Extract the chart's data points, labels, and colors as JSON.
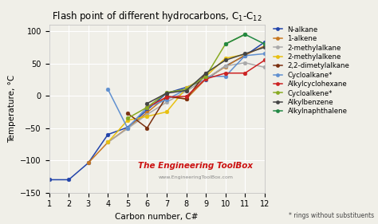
{
  "title": "Flash point of different hydrocarbons, C$_1$-C$_{12}$",
  "xlabel": "Carbon number, C#",
  "ylabel": "Temperature, °C",
  "ylim": [
    -150,
    110
  ],
  "xlim": [
    1,
    12
  ],
  "background_color": "#f0efe8",
  "plot_bg": "#f0efe8",
  "watermark": "The Engineering ToolBox",
  "watermark_url": "www.EngineeringToolBox.com",
  "watermark_color": "#cc1111",
  "series": [
    {
      "label": "N-alkane",
      "color": "#2244aa",
      "x": [
        1,
        2,
        3,
        4,
        5,
        6,
        7,
        8,
        9,
        10,
        11,
        12
      ],
      "y": [
        -130,
        -130,
        -104,
        -60,
        -49,
        -22,
        4,
        13,
        25,
        46,
        62,
        83
      ]
    },
    {
      "label": "1-alkene",
      "color": "#c87820",
      "x": [
        3,
        4,
        5,
        6,
        7,
        8,
        9,
        10,
        11,
        12
      ],
      "y": [
        -104,
        -72,
        -50,
        -26,
        -1,
        -5,
        26,
        45,
        63,
        77
      ]
    },
    {
      "label": "2-methylalkane",
      "color": "#aaaaaa",
      "x": [
        4,
        5,
        6,
        7,
        8,
        9,
        10,
        11,
        12
      ],
      "y": [
        -72,
        -51,
        -29,
        -10,
        7,
        26,
        46,
        51,
        44
      ]
    },
    {
      "label": "2-methylalkene",
      "color": "#e8c010",
      "x": [
        4,
        5,
        6,
        7,
        8,
        9,
        10,
        11
      ],
      "y": [
        -72,
        -38,
        -32,
        -25,
        12,
        30,
        58,
        64
      ]
    },
    {
      "label": "2,2-dimetylalkane",
      "color": "#7a3010",
      "x": [
        5,
        6,
        7,
        8,
        9
      ],
      "y": [
        -27,
        -50,
        -1,
        -5,
        35
      ]
    },
    {
      "label": "Cycloalkane*",
      "color": "#6090d0",
      "x": [
        4,
        5,
        6,
        7,
        8,
        9,
        10,
        11,
        12
      ],
      "y": [
        10,
        -50,
        -18,
        -6,
        10,
        30,
        30,
        62,
        65
      ]
    },
    {
      "label": "Alkylcyclohexane",
      "color": "#cc2222",
      "x": [
        6,
        7,
        8,
        9,
        10,
        11,
        12
      ],
      "y": [
        -18,
        -2,
        -1,
        26,
        35,
        35,
        55
      ]
    },
    {
      "label": "Cycloalkene*",
      "color": "#88aa22",
      "x": [
        5,
        6,
        7,
        8,
        9,
        10,
        11
      ],
      "y": [
        -35,
        -18,
        5,
        10,
        30,
        80,
        95
      ]
    },
    {
      "label": "Alkylbenzene",
      "color": "#444444",
      "x": [
        6,
        7,
        8,
        9,
        10,
        11,
        12
      ],
      "y": [
        -12,
        4,
        8,
        35,
        55,
        65,
        75
      ]
    },
    {
      "label": "Alkylnaphthalene",
      "color": "#228844",
      "x": [
        10,
        11,
        12
      ],
      "y": [
        80,
        95,
        80
      ]
    }
  ]
}
